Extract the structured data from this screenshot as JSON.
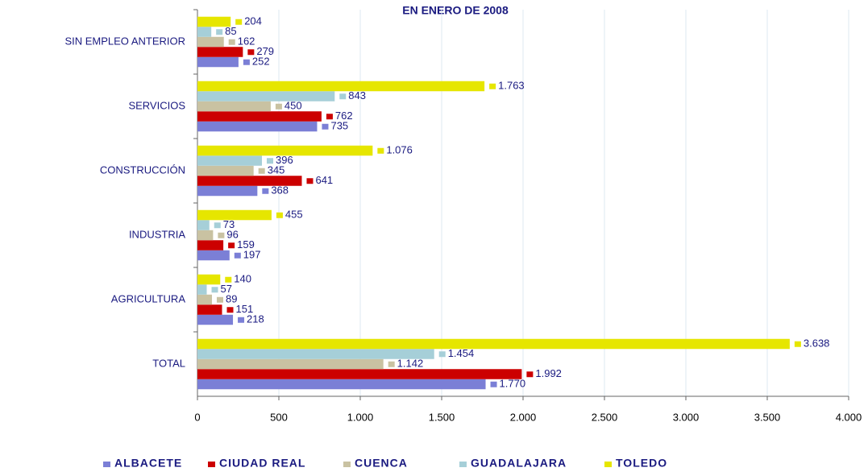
{
  "chart_data": {
    "type": "hbar",
    "title": "EN ENERO DE 2008",
    "categories": [
      "SIN EMPLEO ANTERIOR",
      "SERVICIOS",
      "CONSTRUCCIÓN",
      "INDUSTRIA",
      "AGRICULTURA",
      "TOTAL"
    ],
    "series": [
      {
        "name": "ALBACETE",
        "color": "#7b7fd6",
        "values": [
          252,
          735,
          368,
          197,
          218,
          1770
        ],
        "value_labels": [
          "252",
          "735",
          "368",
          "197",
          "218",
          "1.770"
        ]
      },
      {
        "name": "CIUDAD REAL",
        "color": "#cc0000",
        "values": [
          279,
          762,
          641,
          159,
          151,
          1992
        ],
        "value_labels": [
          "279",
          "762",
          "641",
          "159",
          "151",
          "1.992"
        ]
      },
      {
        "name": "CUENCA",
        "color": "#c9c2a2",
        "values": [
          162,
          450,
          345,
          96,
          89,
          1142
        ],
        "value_labels": [
          "162",
          "450",
          "345",
          "96",
          "89",
          "1.142"
        ]
      },
      {
        "name": "GUADALAJARA",
        "color": "#a6cfd8",
        "values": [
          85,
          843,
          396,
          73,
          57,
          1454
        ],
        "value_labels": [
          "85",
          "843",
          "396",
          "73",
          "57",
          "1.454"
        ]
      },
      {
        "name": "TOLEDO",
        "color": "#e6e600",
        "values": [
          204,
          1763,
          1076,
          455,
          140,
          3638
        ],
        "value_labels": [
          "204",
          "1.763",
          "1.076",
          "455",
          "140",
          "3.638"
        ]
      }
    ],
    "xlim": [
      0,
      4000
    ],
    "xticks": [
      0,
      500,
      {
        "value": 1000,
        "label": "1.000"
      },
      {
        "value": 1500,
        "label": "1.500"
      },
      {
        "value": 2000,
        "label": "2.000"
      },
      {
        "value": 2500,
        "label": "2.500"
      },
      {
        "value": 3000,
        "label": "3.000"
      },
      {
        "value": 3500,
        "label": "3.500"
      },
      {
        "value": 4000,
        "label": "4.000"
      }
    ],
    "grid": true,
    "legend": "bottom"
  }
}
